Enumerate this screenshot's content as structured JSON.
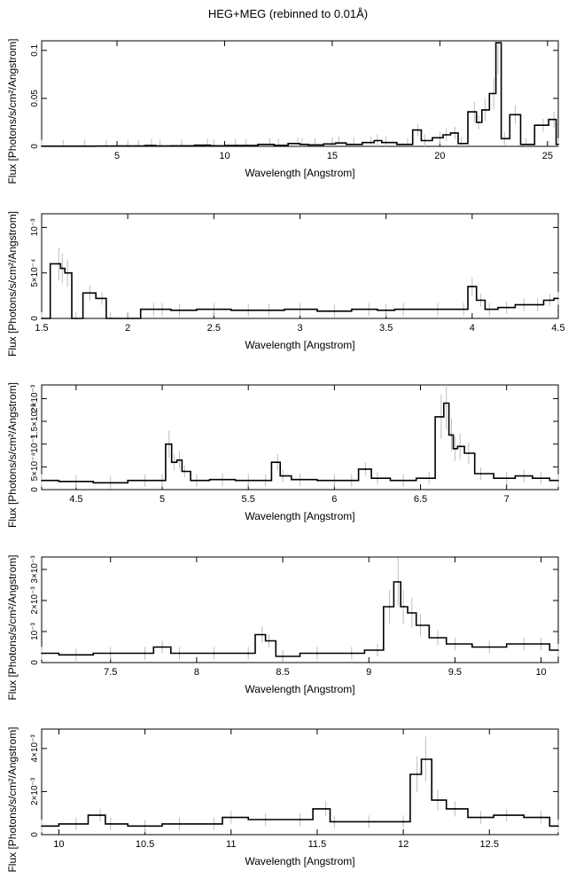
{
  "figure_title": "HEG+MEG (rebinned to 0.01Å)",
  "chart_data": [
    {
      "type": "line",
      "title": "",
      "xlabel": "Wavelength [Angstrom]",
      "ylabel": "Flux [Photons/s/cm²/Angstrom]",
      "xlim": [
        1.5,
        25.5
      ],
      "ylim": [
        0,
        0.11
      ],
      "x_ticks": [
        5,
        10,
        15,
        20,
        25
      ],
      "x_tick_labels": [
        "5",
        "10",
        "15",
        "20",
        "25"
      ],
      "y_ticks": [
        0,
        0.05,
        0.1
      ],
      "y_tick_labels": [
        "0",
        "0.05",
        "0.1"
      ],
      "grid": false,
      "series": [
        {
          "x": [
            1.5,
            2.5,
            3.5,
            4.5,
            5.5,
            6.0,
            6.6,
            7.0,
            8.0,
            9.2,
            9.5,
            10.5,
            11.0,
            12.1,
            12.5,
            13.4,
            13.6,
            14.2,
            15.0,
            15.3,
            16.0,
            16.8,
            17.1,
            17.5,
            18.5,
            18.97,
            19.3,
            20.0,
            20.3,
            20.7,
            21.0,
            21.6,
            21.8,
            22.1,
            22.5,
            22.7,
            23.0,
            23.5,
            24.0,
            24.8,
            25.3,
            25.5
          ],
          "y": [
            0.0002,
            0.0002,
            0.0002,
            0.0003,
            0.0005,
            0.0004,
            0.0008,
            0.0005,
            0.0006,
            0.0012,
            0.0006,
            0.0008,
            0.0009,
            0.002,
            0.001,
            0.003,
            0.002,
            0.0015,
            0.0025,
            0.0035,
            0.002,
            0.004,
            0.006,
            0.004,
            0.002,
            0.017,
            0.006,
            0.009,
            0.012,
            0.014,
            0.003,
            0.036,
            0.025,
            0.038,
            0.055,
            0.108,
            0.008,
            0.033,
            0.002,
            0.022,
            0.028,
            0.002
          ]
        }
      ]
    },
    {
      "type": "line",
      "title": "",
      "xlabel": "Wavelength [Angstrom]",
      "ylabel": "Flux [Photons/s/cm²/Angstrom]",
      "xlim": [
        1.5,
        4.5
      ],
      "ylim": [
        0,
        0.00115
      ],
      "x_ticks": [
        1.5,
        2,
        2.5,
        3,
        3.5,
        4,
        4.5
      ],
      "x_tick_labels": [
        "1.5",
        "2",
        "2.5",
        "3",
        "3.5",
        "4",
        "4.5"
      ],
      "y_ticks": [
        0,
        0.0005,
        0.001
      ],
      "y_tick_labels": [
        "0",
        "5×10⁻⁴",
        "10⁻³"
      ],
      "grid": false,
      "series": [
        {
          "x": [
            1.5,
            1.6,
            1.62,
            1.65,
            1.7,
            1.78,
            1.85,
            1.9,
            2.0,
            2.15,
            2.2,
            2.3,
            2.5,
            2.7,
            2.82,
            3.0,
            3.2,
            3.4,
            3.5,
            3.6,
            3.8,
            3.95,
            4.0,
            4.05,
            4.1,
            4.2,
            4.3,
            4.38,
            4.45,
            4.5
          ],
          "y": [
            0.0,
            0.0006,
            0.00055,
            0.0005,
            0.0,
            0.00028,
            0.00022,
            0.0,
            0.0,
            0.0001,
            0.0001,
            9e-05,
            0.0001,
            9e-05,
            9e-05,
            0.0001,
            8e-05,
            0.0001,
            9e-05,
            0.0001,
            0.0001,
            0.0001,
            0.00035,
            0.0002,
            0.0001,
            0.00012,
            0.00015,
            0.00015,
            0.0002,
            0.00022
          ]
        }
      ]
    },
    {
      "type": "line",
      "title": "",
      "xlabel": "Wavelength [Angstrom]",
      "ylabel": "Flux [Photons/s/cm²/Angstrom]",
      "xlim": [
        4.3,
        7.3
      ],
      "ylim": [
        0,
        0.0023
      ],
      "x_ticks": [
        4.5,
        5,
        5.5,
        6,
        6.5,
        7
      ],
      "x_tick_labels": [
        "4.5",
        "5",
        "5.5",
        "6",
        "6.5",
        "7"
      ],
      "y_ticks": [
        0,
        0.0005,
        0.001,
        0.0015,
        0.002
      ],
      "y_tick_labels": [
        "0",
        "5×10⁻⁴",
        "10⁻³",
        "1.5×10⁻³",
        "2×10⁻³"
      ],
      "grid": false,
      "series": [
        {
          "x": [
            4.3,
            4.5,
            4.7,
            4.9,
            5.0,
            5.04,
            5.07,
            5.1,
            5.13,
            5.2,
            5.35,
            5.5,
            5.6,
            5.67,
            5.7,
            5.8,
            6.0,
            6.1,
            6.18,
            6.25,
            6.4,
            6.55,
            6.62,
            6.65,
            6.68,
            6.7,
            6.73,
            6.78,
            6.85,
            7.0,
            7.1,
            7.2,
            7.3
          ],
          "y": [
            0.0002,
            0.00018,
            0.00015,
            0.0002,
            0.0002,
            0.001,
            0.0006,
            0.00065,
            0.0004,
            0.0002,
            0.00022,
            0.0002,
            0.0002,
            0.0006,
            0.0003,
            0.00022,
            0.0002,
            0.0002,
            0.00045,
            0.00025,
            0.0002,
            0.00025,
            0.0016,
            0.0019,
            0.0012,
            0.0009,
            0.00095,
            0.0008,
            0.00035,
            0.00025,
            0.0003,
            0.00025,
            0.0002
          ]
        }
      ]
    },
    {
      "type": "line",
      "title": "",
      "xlabel": "Wavelength [Angstrom]",
      "ylabel": "Flux [Photons/s/cm²/Angstrom]",
      "xlim": [
        7.1,
        10.1
      ],
      "ylim": [
        0,
        0.0034
      ],
      "x_ticks": [
        7.5,
        8,
        8.5,
        9,
        9.5,
        10
      ],
      "x_tick_labels": [
        "7.5",
        "8",
        "8.5",
        "9",
        "9.5",
        "10"
      ],
      "y_ticks": [
        0,
        0.001,
        0.002,
        0.003
      ],
      "y_tick_labels": [
        "0",
        "10⁻³",
        "2×10⁻³",
        "3×10⁻³"
      ],
      "grid": false,
      "series": [
        {
          "x": [
            7.1,
            7.3,
            7.5,
            7.7,
            7.8,
            7.9,
            8.1,
            8.3,
            8.38,
            8.42,
            8.5,
            8.7,
            8.9,
            9.05,
            9.12,
            9.17,
            9.2,
            9.25,
            9.3,
            9.4,
            9.5,
            9.7,
            9.9,
            10.0,
            10.1
          ],
          "y": [
            0.0003,
            0.00025,
            0.0003,
            0.0003,
            0.0005,
            0.0003,
            0.0003,
            0.0003,
            0.0009,
            0.0007,
            0.0002,
            0.0003,
            0.0003,
            0.0004,
            0.0018,
            0.0026,
            0.0018,
            0.0016,
            0.0012,
            0.0008,
            0.0006,
            0.0005,
            0.0006,
            0.0006,
            0.0004
          ]
        }
      ]
    },
    {
      "type": "line",
      "title": "",
      "xlabel": "Wavelength [Angstrom]",
      "ylabel": "Flux [Photons/s/cm²/Angstrom]",
      "xlim": [
        9.9,
        12.9
      ],
      "ylim": [
        0,
        0.0049
      ],
      "x_ticks": [
        10,
        10.5,
        11,
        11.5,
        12,
        12.5
      ],
      "x_tick_labels": [
        "10",
        "10.5",
        "11",
        "11.5",
        "12",
        "12.5"
      ],
      "y_ticks": [
        0,
        0.002,
        0.004
      ],
      "y_tick_labels": [
        "0",
        "2×10⁻³",
        "4×10⁻³"
      ],
      "grid": false,
      "series": [
        {
          "x": [
            9.9,
            10.1,
            10.24,
            10.3,
            10.5,
            10.7,
            10.9,
            11.0,
            11.2,
            11.4,
            11.55,
            11.6,
            11.8,
            12.0,
            12.08,
            12.13,
            12.2,
            12.3,
            12.45,
            12.6,
            12.8,
            12.9
          ],
          "y": [
            0.0004,
            0.0005,
            0.0009,
            0.0005,
            0.0004,
            0.0005,
            0.0005,
            0.0008,
            0.0007,
            0.0007,
            0.0012,
            0.0006,
            0.0006,
            0.0006,
            0.0028,
            0.0035,
            0.0016,
            0.0012,
            0.0008,
            0.0009,
            0.0008,
            0.0004
          ]
        }
      ]
    }
  ]
}
